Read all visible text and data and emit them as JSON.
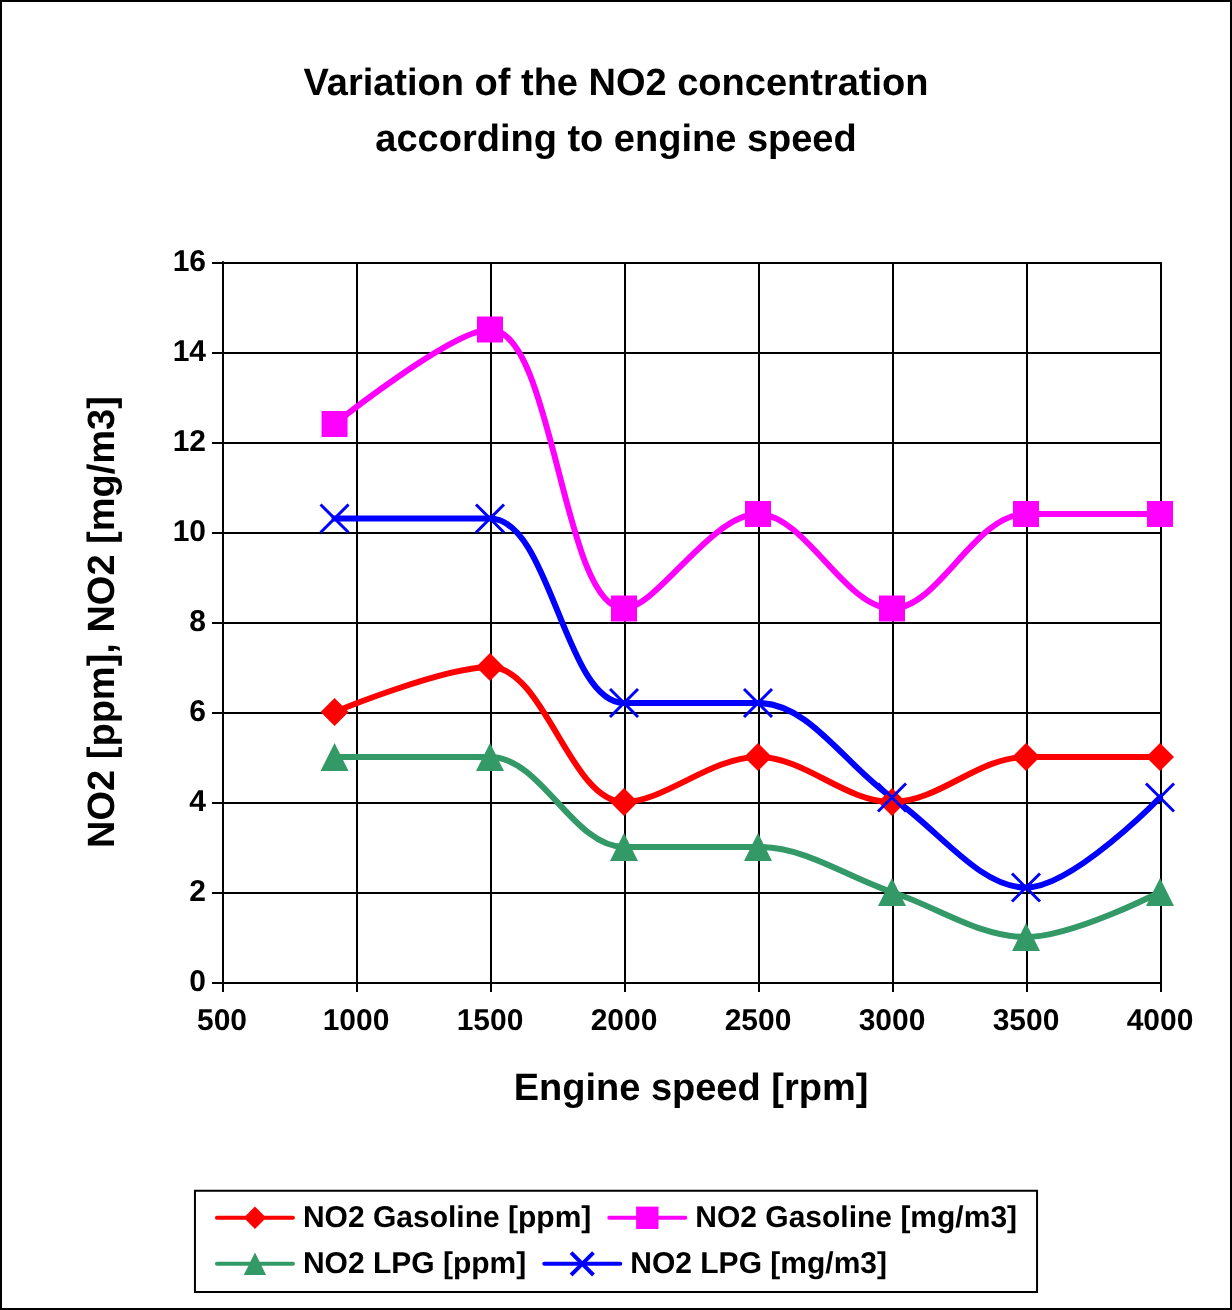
{
  "chart_data": {
    "type": "line",
    "title": "Variation of the NO2 concentration\naccording to engine speed",
    "xlabel": "Engine speed [rpm]",
    "ylabel": "NO2 [ppm], NO2 [mg/m3]",
    "x": [
      920,
      1500,
      2000,
      2500,
      3000,
      3500,
      4000
    ],
    "series": [
      {
        "name": "NO2 Gasoline [ppm]",
        "color": "#ff0000",
        "marker": "diamond",
        "values": [
          6,
          7,
          4,
          5,
          4,
          5,
          5
        ]
      },
      {
        "name": "NO2 Gasoline [mg/m3]",
        "color": "#ff00ff",
        "marker": "square",
        "values": [
          12.4,
          14.5,
          8.3,
          10.4,
          8.3,
          10.4,
          10.4
        ]
      },
      {
        "name": "NO2 LPG [ppm]",
        "color": "#339966",
        "marker": "triangle",
        "values": [
          5,
          5,
          3,
          3,
          2,
          1,
          2
        ]
      },
      {
        "name": "NO2 LPG [mg/m3]",
        "color": "#0000ff",
        "marker": "cross",
        "values": [
          10.3,
          10.3,
          6.2,
          6.2,
          4.1,
          2.1,
          4.1
        ]
      }
    ],
    "xlim": [
      500,
      4000
    ],
    "xticks": [
      500,
      1000,
      1500,
      2000,
      2500,
      3000,
      3500,
      4000
    ],
    "ylim": [
      0,
      16
    ],
    "yticks": [
      0,
      2,
      4,
      6,
      8,
      10,
      12,
      14,
      16
    ],
    "grid": true,
    "legend": "bottom",
    "line_style": "solid"
  }
}
